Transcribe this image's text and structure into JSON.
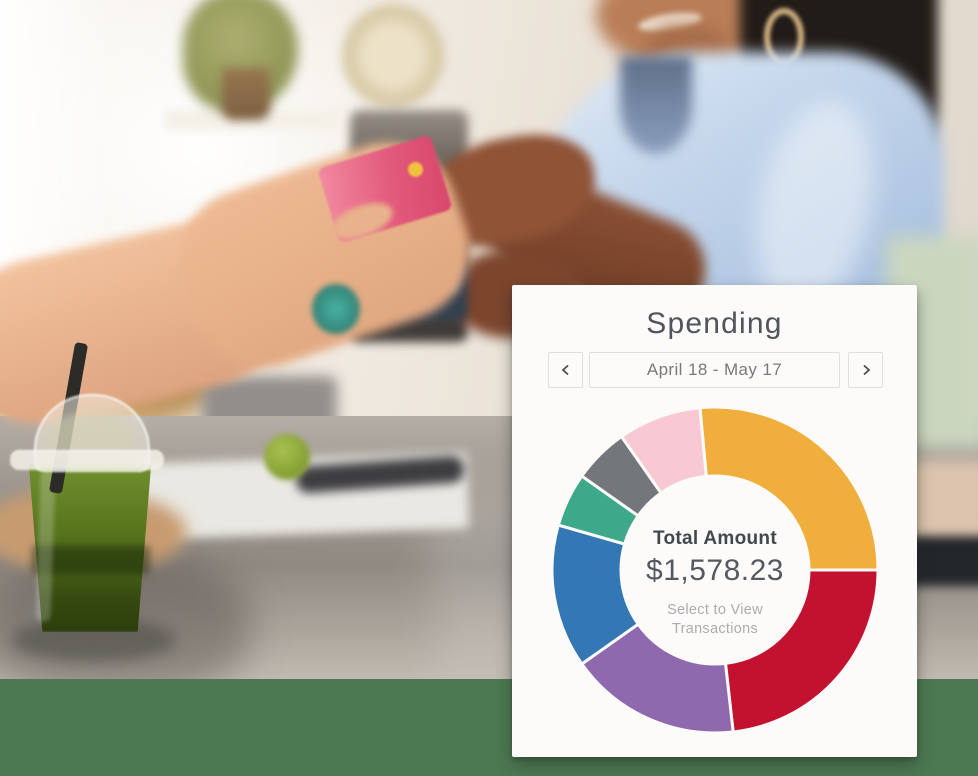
{
  "card": {
    "title": "Spending",
    "nav": {
      "prev_icon": "chevron-left",
      "next_icon": "chevron-right",
      "date_range": "April 18 - May 17"
    },
    "center": {
      "label": "Total Amount",
      "amount": "$1,578.23",
      "hint_line1": "Select to View",
      "hint_line2": "Transactions"
    }
  },
  "colors": {
    "card_bg": "#FCFBFA",
    "title_text": "#50555B",
    "date_text": "#77797C",
    "border": "#DFDFE0",
    "total_label_text": "#43484E",
    "amount_text": "#555A60",
    "hint_text": "#A9ACB0",
    "bottom_band": "#4C7951",
    "chevron": "#4A4F54"
  },
  "chart_data": {
    "type": "pie",
    "subtype": "donut",
    "title": "Spending",
    "period": "April 18 - May 17",
    "total_label": "Total Amount",
    "total_amount_text": "$1,578.23",
    "total_value": 1578.23,
    "center_hint": "Select to View Transactions",
    "legend": "none",
    "angle_reference": "degrees clockwise from 12 o'clock",
    "segments": [
      {
        "name": "amber",
        "color": "#F0AE3C",
        "start_deg": -5.3,
        "sweep_deg": 95.3,
        "percent": 26.5
      },
      {
        "name": "red",
        "color": "#C2122F",
        "start_deg": 90.0,
        "sweep_deg": 83.6,
        "percent": 23.2
      },
      {
        "name": "purple",
        "color": "#8F69AE",
        "start_deg": 173.6,
        "sweep_deg": 61.2,
        "percent": 17.0
      },
      {
        "name": "blue",
        "color": "#3377B4",
        "start_deg": 234.8,
        "sweep_deg": 51.2,
        "percent": 14.2
      },
      {
        "name": "green",
        "color": "#3EA98A",
        "start_deg": 286.0,
        "sweep_deg": 19.2,
        "percent": 5.3
      },
      {
        "name": "gray",
        "color": "#73777B",
        "start_deg": 305.2,
        "sweep_deg": 19.8,
        "percent": 5.5
      },
      {
        "name": "pink",
        "color": "#F8C9D2",
        "start_deg": 325.0,
        "sweep_deg": 29.7,
        "percent": 8.3
      }
    ],
    "geometry": {
      "outer_radius": 163,
      "inner_radius": 94,
      "separator_color": "#FCFBFA",
      "separator_width": 3
    }
  }
}
